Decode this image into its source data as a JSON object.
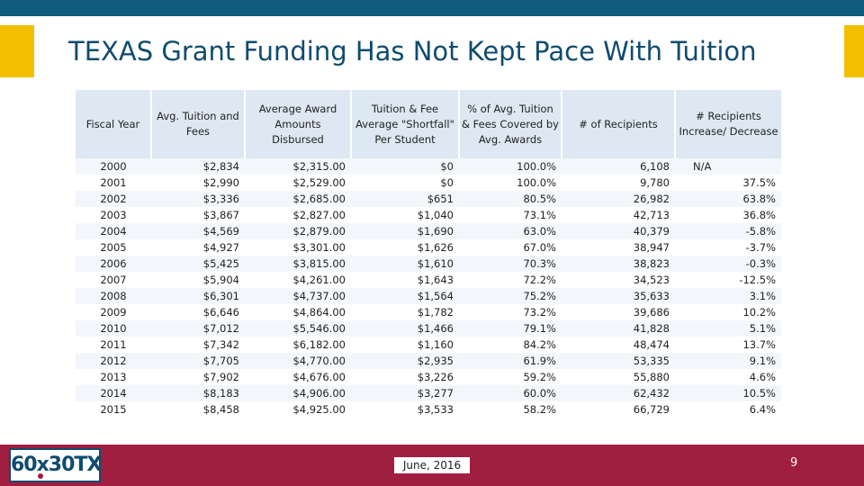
{
  "title": "TEXAS Grant Funding Has Not Kept Pace With Tuition",
  "columns": [
    "Fiscal Year",
    "Avg. Tuition and Fees",
    "Average Award Amounts Disbursed",
    "Tuition & Fee Average \"Shortfall\" Per Student",
    "% of Avg. Tuition & Fees Covered by Avg. Awards",
    "# of Recipients",
    "# Recipients Increase/ Decrease"
  ],
  "rows": [
    [
      "2000",
      "$2,834",
      "$2,315.00",
      "$0",
      "100.0%",
      "6,108",
      "N/A"
    ],
    [
      "2001",
      "$2,990",
      "$2,529.00",
      "$0",
      "100.0%",
      "9,780",
      "37.5%"
    ],
    [
      "2002",
      "$3,336",
      "$2,685.00",
      "$651",
      "80.5%",
      "26,982",
      "63.8%"
    ],
    [
      "2003",
      "$3,867",
      "$2,827.00",
      "$1,040",
      "73.1%",
      "42,713",
      "36.8%"
    ],
    [
      "2004",
      "$4,569",
      "$2,879.00",
      "$1,690",
      "63.0%",
      "40,379",
      "-5.8%"
    ],
    [
      "2005",
      "$4,927",
      "$3,301.00",
      "$1,626",
      "67.0%",
      "38,947",
      "-3.7%"
    ],
    [
      "2006",
      "$5,425",
      "$3,815.00",
      "$1,610",
      "70.3%",
      "38,823",
      "-0.3%"
    ],
    [
      "2007",
      "$5,904",
      "$4,261.00",
      "$1,643",
      "72.2%",
      "34,523",
      "-12.5%"
    ],
    [
      "2008",
      "$6,301",
      "$4,737.00",
      "$1,564",
      "75.2%",
      "35,633",
      "3.1%"
    ],
    [
      "2009",
      "$6,646",
      "$4,864.00",
      "$1,782",
      "73.2%",
      "39,686",
      "10.2%"
    ],
    [
      "2010",
      "$7,012",
      "$5,546.00",
      "$1,466",
      "79.1%",
      "41,828",
      "5.1%"
    ],
    [
      "2011",
      "$7,342",
      "$6,182.00",
      "$1,160",
      "84.2%",
      "48,474",
      "13.7%"
    ],
    [
      "2012",
      "$7,705",
      "$4,770.00",
      "$2,935",
      "61.9%",
      "53,335",
      "9.1%"
    ],
    [
      "2013",
      "$7,902",
      "$4,676.00",
      "$3,226",
      "59.2%",
      "55,880",
      "4.6%"
    ],
    [
      "2014",
      "$8,183",
      "$4,906.00",
      "$3,277",
      "60.0%",
      "62,432",
      "10.5%"
    ],
    [
      "2015",
      "$8,458",
      "$4,925.00",
      "$3,533",
      "58.2%",
      "66,729",
      "6.4%"
    ]
  ],
  "footer": {
    "logo_text": "60x30TX",
    "date": "June, 2016",
    "page_number": "9"
  },
  "colors": {
    "top_bar": "#0f5b7e",
    "title_band": "#f3bf00",
    "title_text": "#0f4c6e",
    "header_bg": "#dde8f3",
    "footer_bg": "#a01e3f"
  }
}
